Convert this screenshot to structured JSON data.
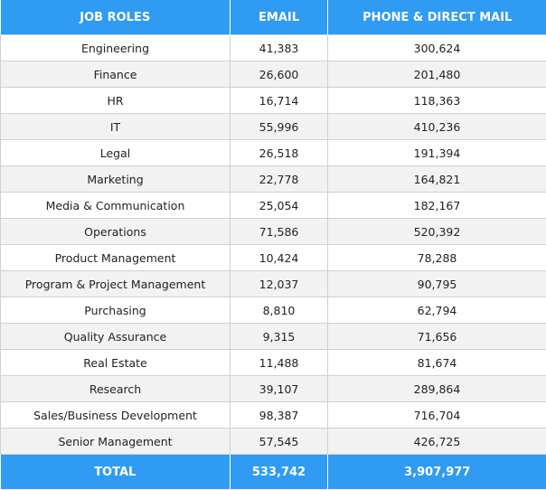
{
  "table": {
    "headers": [
      "JOB ROLES",
      "EMAIL",
      "PHONE & DIRECT MAIL"
    ],
    "rows": [
      [
        "Engineering",
        "41,383",
        "300,624"
      ],
      [
        "Finance",
        "26,600",
        "201,480"
      ],
      [
        "HR",
        "16,714",
        "118,363"
      ],
      [
        "IT",
        "55,996",
        "410,236"
      ],
      [
        "Legal",
        "26,518",
        "191,394"
      ],
      [
        "Marketing",
        "22,778",
        "164,821"
      ],
      [
        "Media & Communication",
        "25,054",
        "182,167"
      ],
      [
        "Operations",
        "71,586",
        "520,392"
      ],
      [
        "Product Management",
        "10,424",
        "78,288"
      ],
      [
        "Program & Project Management",
        "12,037",
        "90,795"
      ],
      [
        "Purchasing",
        "8,810",
        "62,794"
      ],
      [
        "Quality Assurance",
        "9,315",
        "71,656"
      ],
      [
        "Real Estate",
        "11,488",
        "81,674"
      ],
      [
        "Research",
        "39,107",
        "289,864"
      ],
      [
        "Sales/Business Development",
        "98,387",
        "716,704"
      ],
      [
        "Senior Management",
        "57,545",
        "426,725"
      ]
    ],
    "total": [
      "TOTAL",
      "533,742",
      "3,907,977"
    ]
  }
}
